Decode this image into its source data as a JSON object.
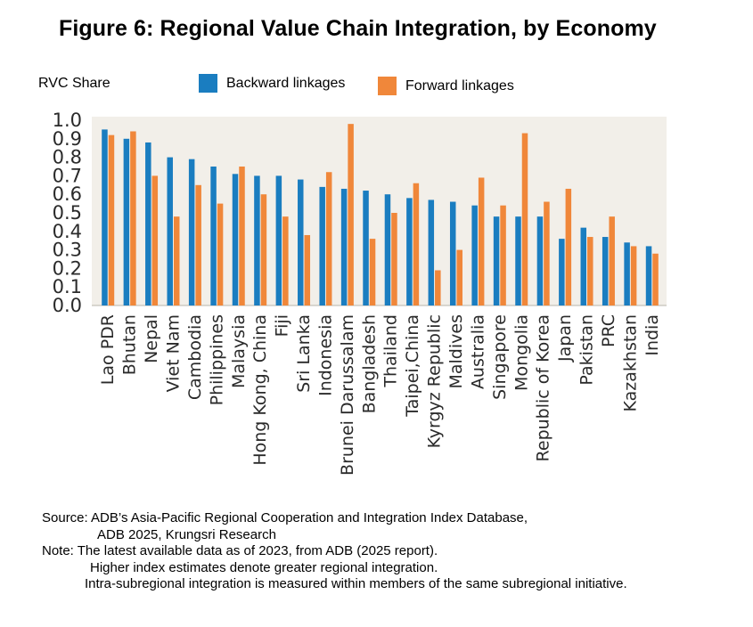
{
  "title": "Figure 6: Regional Value Chain Integration, by Economy",
  "chart_data": {
    "type": "bar",
    "title": "Figure 6: Regional Value Chain Integration, by Economy",
    "ylabel": "RVC Share",
    "xlabel": "",
    "ylim": [
      0,
      1.0
    ],
    "yticks": [
      "0.0",
      "0.1",
      "0.2",
      "0.3",
      "0.4",
      "0.5",
      "0.6",
      "0.7",
      "0.8",
      "0.9",
      "1.0"
    ],
    "categories": [
      "Lao PDR",
      "Bhutan",
      "Nepal",
      "Viet Nam",
      "Cambodia",
      "Philippines",
      "Malaysia",
      "Hong Kong, China",
      "Fiji",
      "Sri Lanka",
      "Indonesia",
      "Brunei Darussalam",
      "Bangladesh",
      "Thailand",
      "Taipei,China",
      "Kyrgyz Republic",
      "Maldives",
      "Australia",
      "Singapore",
      "Mongolia",
      "Republic of Korea",
      "Japan",
      "Pakistan",
      "PRC",
      "Kazakhstan",
      "India"
    ],
    "series": [
      {
        "name": "Backward linkages",
        "color": "#1a7dc0",
        "values": [
          0.95,
          0.9,
          0.88,
          0.8,
          0.79,
          0.75,
          0.71,
          0.7,
          0.7,
          0.68,
          0.64,
          0.63,
          0.62,
          0.6,
          0.58,
          0.57,
          0.56,
          0.54,
          0.48,
          0.48,
          0.48,
          0.36,
          0.42,
          0.37,
          0.34,
          0.32
        ]
      },
      {
        "name": "Forward linkages",
        "color": "#f0873a",
        "values": [
          0.92,
          0.94,
          0.7,
          0.48,
          0.65,
          0.55,
          0.75,
          0.6,
          0.48,
          0.38,
          0.72,
          0.98,
          0.36,
          0.5,
          0.66,
          0.19,
          0.3,
          0.69,
          0.54,
          0.93,
          0.56,
          0.63,
          0.37,
          0.48,
          0.32,
          0.28
        ]
      }
    ],
    "legend_position": "top"
  },
  "legend": {
    "backward": "Backward linkages",
    "forward": "Forward linkages"
  },
  "notes": {
    "source_line1": "Source: ADB’s Asia-Pacific Regional Cooperation and Integration Index Database,",
    "source_line2": "ADB 2025, Krungsri Research",
    "note_line1": "Note: The latest available data as of 2023, from ADB (2025 report).",
    "note_line2": "Higher index estimates denote greater regional integration.",
    "note_line3": "Intra-subregional integration is measured within members of the same subregional initiative."
  }
}
